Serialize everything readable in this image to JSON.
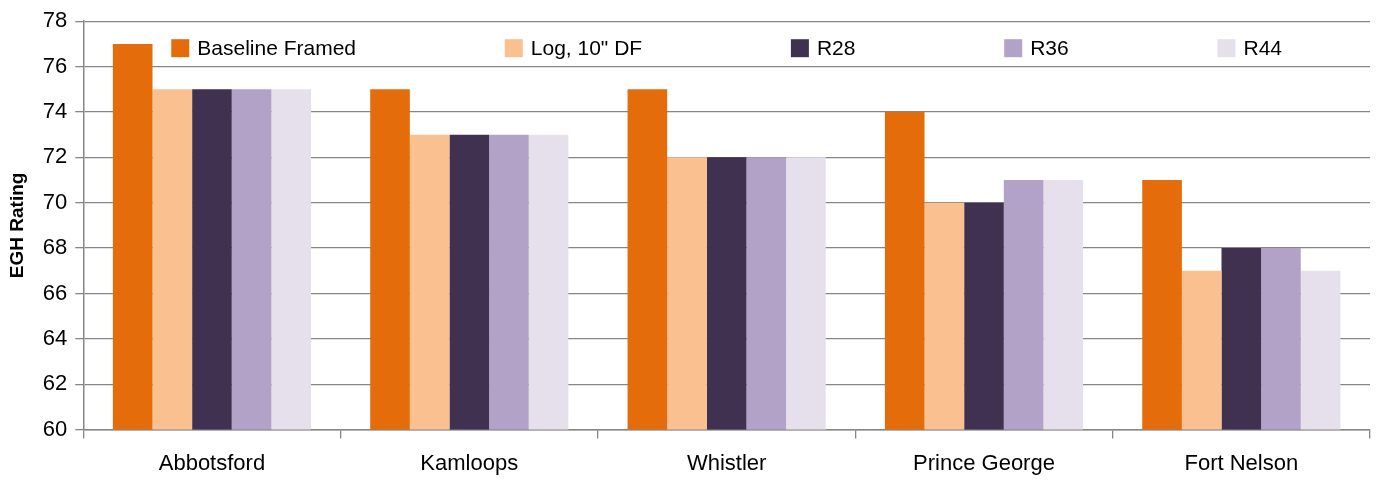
{
  "chart_data": {
    "type": "bar",
    "ylabel": "EGH Rating",
    "categories": [
      "Abbotsford",
      "Kamloops",
      "Whistler",
      "Prince George",
      "Fort Nelson"
    ],
    "series": [
      {
        "name": "Baseline Framed",
        "color": "#e46c0a",
        "values": [
          77,
          75,
          75,
          74,
          71
        ]
      },
      {
        "name": "Log, 10\" DF",
        "color": "#fac090",
        "values": [
          75,
          73,
          72,
          70,
          67
        ]
      },
      {
        "name": "R28",
        "color": "#403151",
        "values": [
          75,
          73,
          72,
          70,
          68
        ]
      },
      {
        "name": "R36",
        "color": "#b3a2c7",
        "values": [
          75,
          73,
          72,
          71,
          68
        ]
      },
      {
        "name": "R44",
        "color": "#e6e0ec",
        "values": [
          75,
          73,
          72,
          71,
          67
        ]
      }
    ],
    "ylim": [
      60,
      78
    ],
    "yticks": [
      60,
      62,
      64,
      66,
      68,
      70,
      72,
      74,
      76,
      78
    ],
    "grid": "y",
    "legend": "top"
  }
}
